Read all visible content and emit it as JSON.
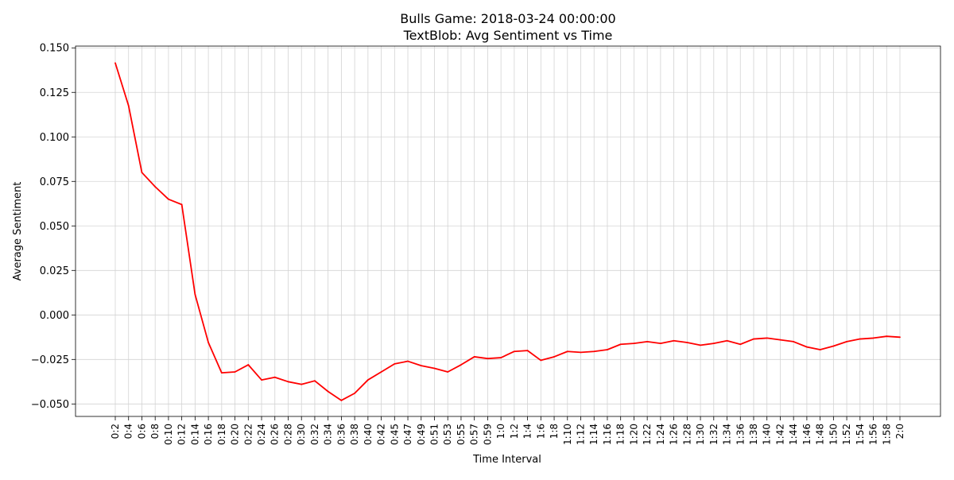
{
  "chart_data": {
    "type": "line",
    "title_line1": "Bulls Game: 2018-03-24 00:00:00",
    "title_line2": "TextBlob: Avg Sentiment vs Time",
    "xlabel": "Time Interval",
    "ylabel": "Average Sentiment",
    "ylim": [
      -0.057,
      0.151
    ],
    "y_ticks": [
      -0.05,
      -0.025,
      0.0,
      0.025,
      0.05,
      0.075,
      0.1,
      0.125,
      0.15
    ],
    "y_tick_labels": [
      "−0.050",
      "−0.025",
      "0.000",
      "0.025",
      "0.050",
      "0.075",
      "0.100",
      "0.125",
      "0.150"
    ],
    "grid": true,
    "line_color": "#ff0000",
    "categories": [
      "0:2",
      "0:4",
      "0:6",
      "0:8",
      "0:10",
      "0:12",
      "0:14",
      "0:16",
      "0:18",
      "0:20",
      "0:22",
      "0:24",
      "0:26",
      "0:28",
      "0:30",
      "0:32",
      "0:34",
      "0:36",
      "0:38",
      "0:40",
      "0:42",
      "0:45",
      "0:47",
      "0:49",
      "0:51",
      "0:53",
      "0:55",
      "0:57",
      "0:59",
      "1:0",
      "1:2",
      "1:4",
      "1:6",
      "1:8",
      "1:10",
      "1:12",
      "1:14",
      "1:16",
      "1:18",
      "1:20",
      "1:22",
      "1:24",
      "1:26",
      "1:28",
      "1:30",
      "1:32",
      "1:34",
      "1:36",
      "1:38",
      "1:40",
      "1:42",
      "1:44",
      "1:46",
      "1:48",
      "1:50",
      "1:52",
      "1:54",
      "1:56",
      "1:58",
      "2:0"
    ],
    "values": [
      0.1415,
      0.1175,
      0.08,
      0.072,
      0.065,
      0.062,
      0.0115,
      -0.0155,
      -0.0325,
      -0.032,
      -0.028,
      -0.0365,
      -0.035,
      -0.0375,
      -0.039,
      -0.037,
      -0.043,
      -0.048,
      -0.044,
      -0.0365,
      -0.032,
      -0.0275,
      -0.026,
      -0.0285,
      -0.03,
      -0.032,
      -0.028,
      -0.0235,
      -0.0245,
      -0.024,
      -0.0205,
      -0.02,
      -0.0255,
      -0.0235,
      -0.0205,
      -0.021,
      -0.0205,
      -0.0195,
      -0.0165,
      -0.016,
      -0.015,
      -0.016,
      -0.0145,
      -0.0155,
      -0.017,
      -0.016,
      -0.0145,
      -0.0165,
      -0.0135,
      -0.013,
      -0.014,
      -0.015,
      -0.018,
      -0.0195,
      -0.0175,
      -0.015,
      -0.0135,
      -0.013,
      -0.012,
      -0.0125
    ]
  }
}
